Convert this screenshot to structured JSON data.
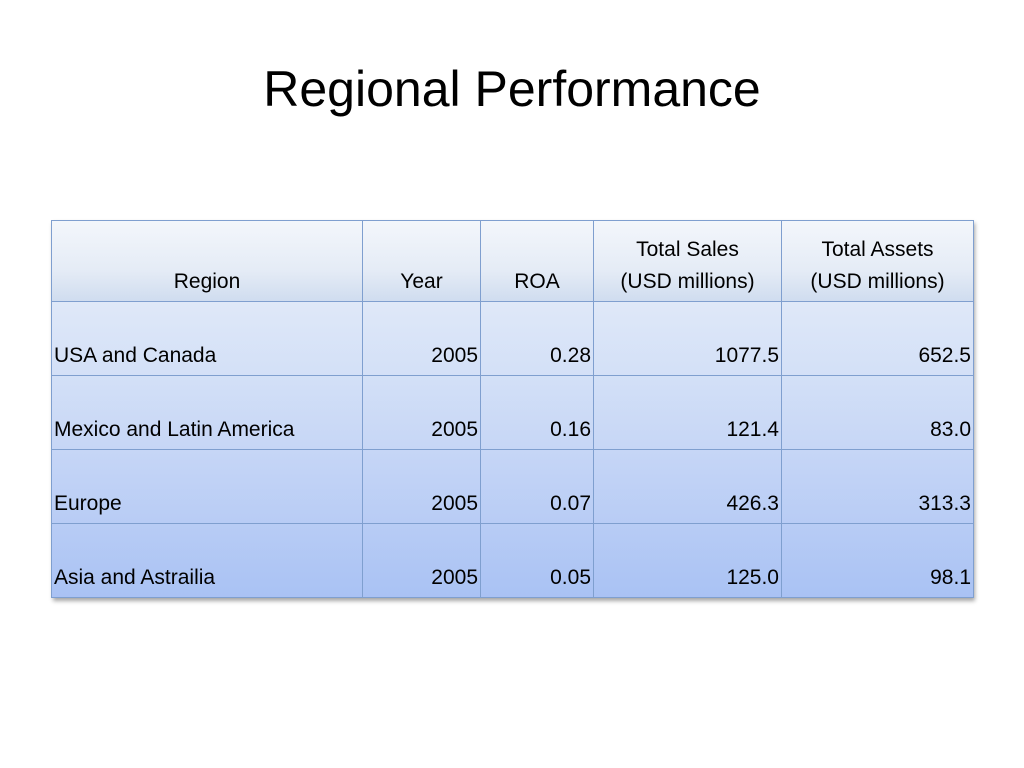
{
  "slide": {
    "title": "Regional Performance"
  },
  "table": {
    "headers": {
      "region": "Region",
      "year": "Year",
      "roa": "ROA",
      "total_sales_line1": "Total Sales",
      "total_sales_line2": "(USD millions)",
      "total_assets_line1": "Total Assets",
      "total_assets_line2": "(USD millions)"
    },
    "rows": [
      {
        "region": "USA and Canada",
        "year": "2005",
        "roa": "0.28",
        "total_sales": "1077.5",
        "total_assets": "652.5"
      },
      {
        "region": "Mexico and Latin America",
        "year": "2005",
        "roa": "0.16",
        "total_sales": "121.4",
        "total_assets": "83.0"
      },
      {
        "region": "Europe",
        "year": "2005",
        "roa": "0.07",
        "total_sales": "426.3",
        "total_assets": "313.3"
      },
      {
        "region": "Asia and Astrailia",
        "year": "2005",
        "roa": "0.05",
        "total_sales": "125.0",
        "total_assets": "98.1"
      }
    ]
  },
  "colors": {
    "border": "#7f9fcf",
    "header_bg": "#e5ecf6",
    "row_bg_top": "#dfe8f8",
    "row_bg_bottom": "#a9c2f4"
  }
}
